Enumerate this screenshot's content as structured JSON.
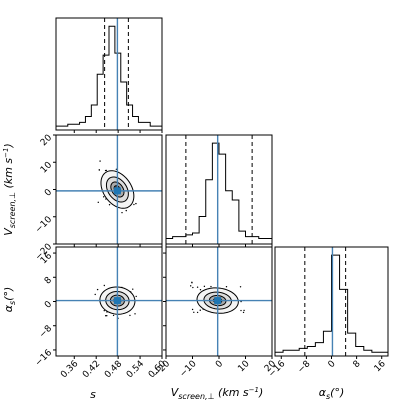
{
  "chart_data": {
    "type": "corner",
    "parameters": [
      {
        "key": "s",
        "label": "s",
        "range": [
          0.31,
          0.6
        ],
        "ticks": [
          0.36,
          0.42,
          0.48,
          0.54,
          0.6
        ],
        "tick_labels": [
          "0.36",
          "0.42",
          "0.48",
          "0.54",
          "0.60"
        ],
        "truth": 0.478,
        "quantiles": [
          0.443,
          0.508
        ],
        "hist": [
          4,
          4,
          6,
          6,
          8,
          14,
          26,
          58,
          78,
          108,
          80,
          50,
          26,
          14,
          8,
          8,
          4,
          4
        ]
      },
      {
        "key": "v",
        "label": "V_screen,⊥ (km s⁻¹)",
        "label_text": "V",
        "label_sub": "screen,⊥",
        "label_unit": " (km s",
        "label_unit_sup": "−1",
        "label_unit_close": ")",
        "range": [
          -20,
          20
        ],
        "ticks": [
          -20,
          -10,
          0,
          10,
          20
        ],
        "tick_labels": [
          "−20",
          "−10",
          "0",
          "10",
          "20"
        ],
        "truth": -0.5,
        "quantiles": [
          -12.5,
          12.5
        ],
        "hist": [
          6,
          8,
          8,
          10,
          12,
          30,
          70,
          110,
          98,
          58,
          48,
          14,
          8,
          8,
          6,
          6
        ]
      },
      {
        "key": "a",
        "label": "α_s (°)",
        "label_text": "α",
        "label_sub": "s",
        "label_unit": "(°)",
        "range": [
          -18,
          18
        ],
        "ticks": [
          -16,
          -8,
          0,
          8,
          16
        ],
        "tick_labels": [
          "−16",
          "−8",
          "0",
          "8",
          "16"
        ],
        "truth": 0.3,
        "quantiles": [
          -8.5,
          4.5
        ],
        "hist": [
          4,
          6,
          6,
          8,
          10,
          14,
          26,
          106,
          70,
          24,
          10,
          6,
          4,
          4
        ]
      }
    ],
    "pairs": [
      {
        "x": "s",
        "y": "v",
        "center": [
          0.478,
          0.0
        ],
        "sigma": [
          0.015,
          2.3
        ],
        "rho": -0.35,
        "contours": [
          0.6,
          1.2,
          2.0,
          3.0
        ],
        "core_scale": 1.0
      },
      {
        "x": "s",
        "y": "a",
        "center": [
          0.478,
          0.3
        ],
        "sigma": [
          0.016,
          1.5
        ],
        "rho": -0.05,
        "contours": [
          0.6,
          1.2,
          2.0,
          3.0
        ],
        "core_scale": 1.0
      },
      {
        "x": "v",
        "y": "a",
        "center": [
          -0.5,
          0.3
        ],
        "sigma": [
          2.6,
          1.4
        ],
        "rho": -0.1,
        "contours": [
          0.6,
          1.2,
          2.0,
          3.0
        ],
        "core_scale": 1.0
      }
    ],
    "colors": {
      "truth": "#4682b4",
      "hist": "#000000",
      "quantile": "#000000",
      "contour": "#000000",
      "marker": "#1f77b4",
      "density_core": "#555555"
    }
  }
}
